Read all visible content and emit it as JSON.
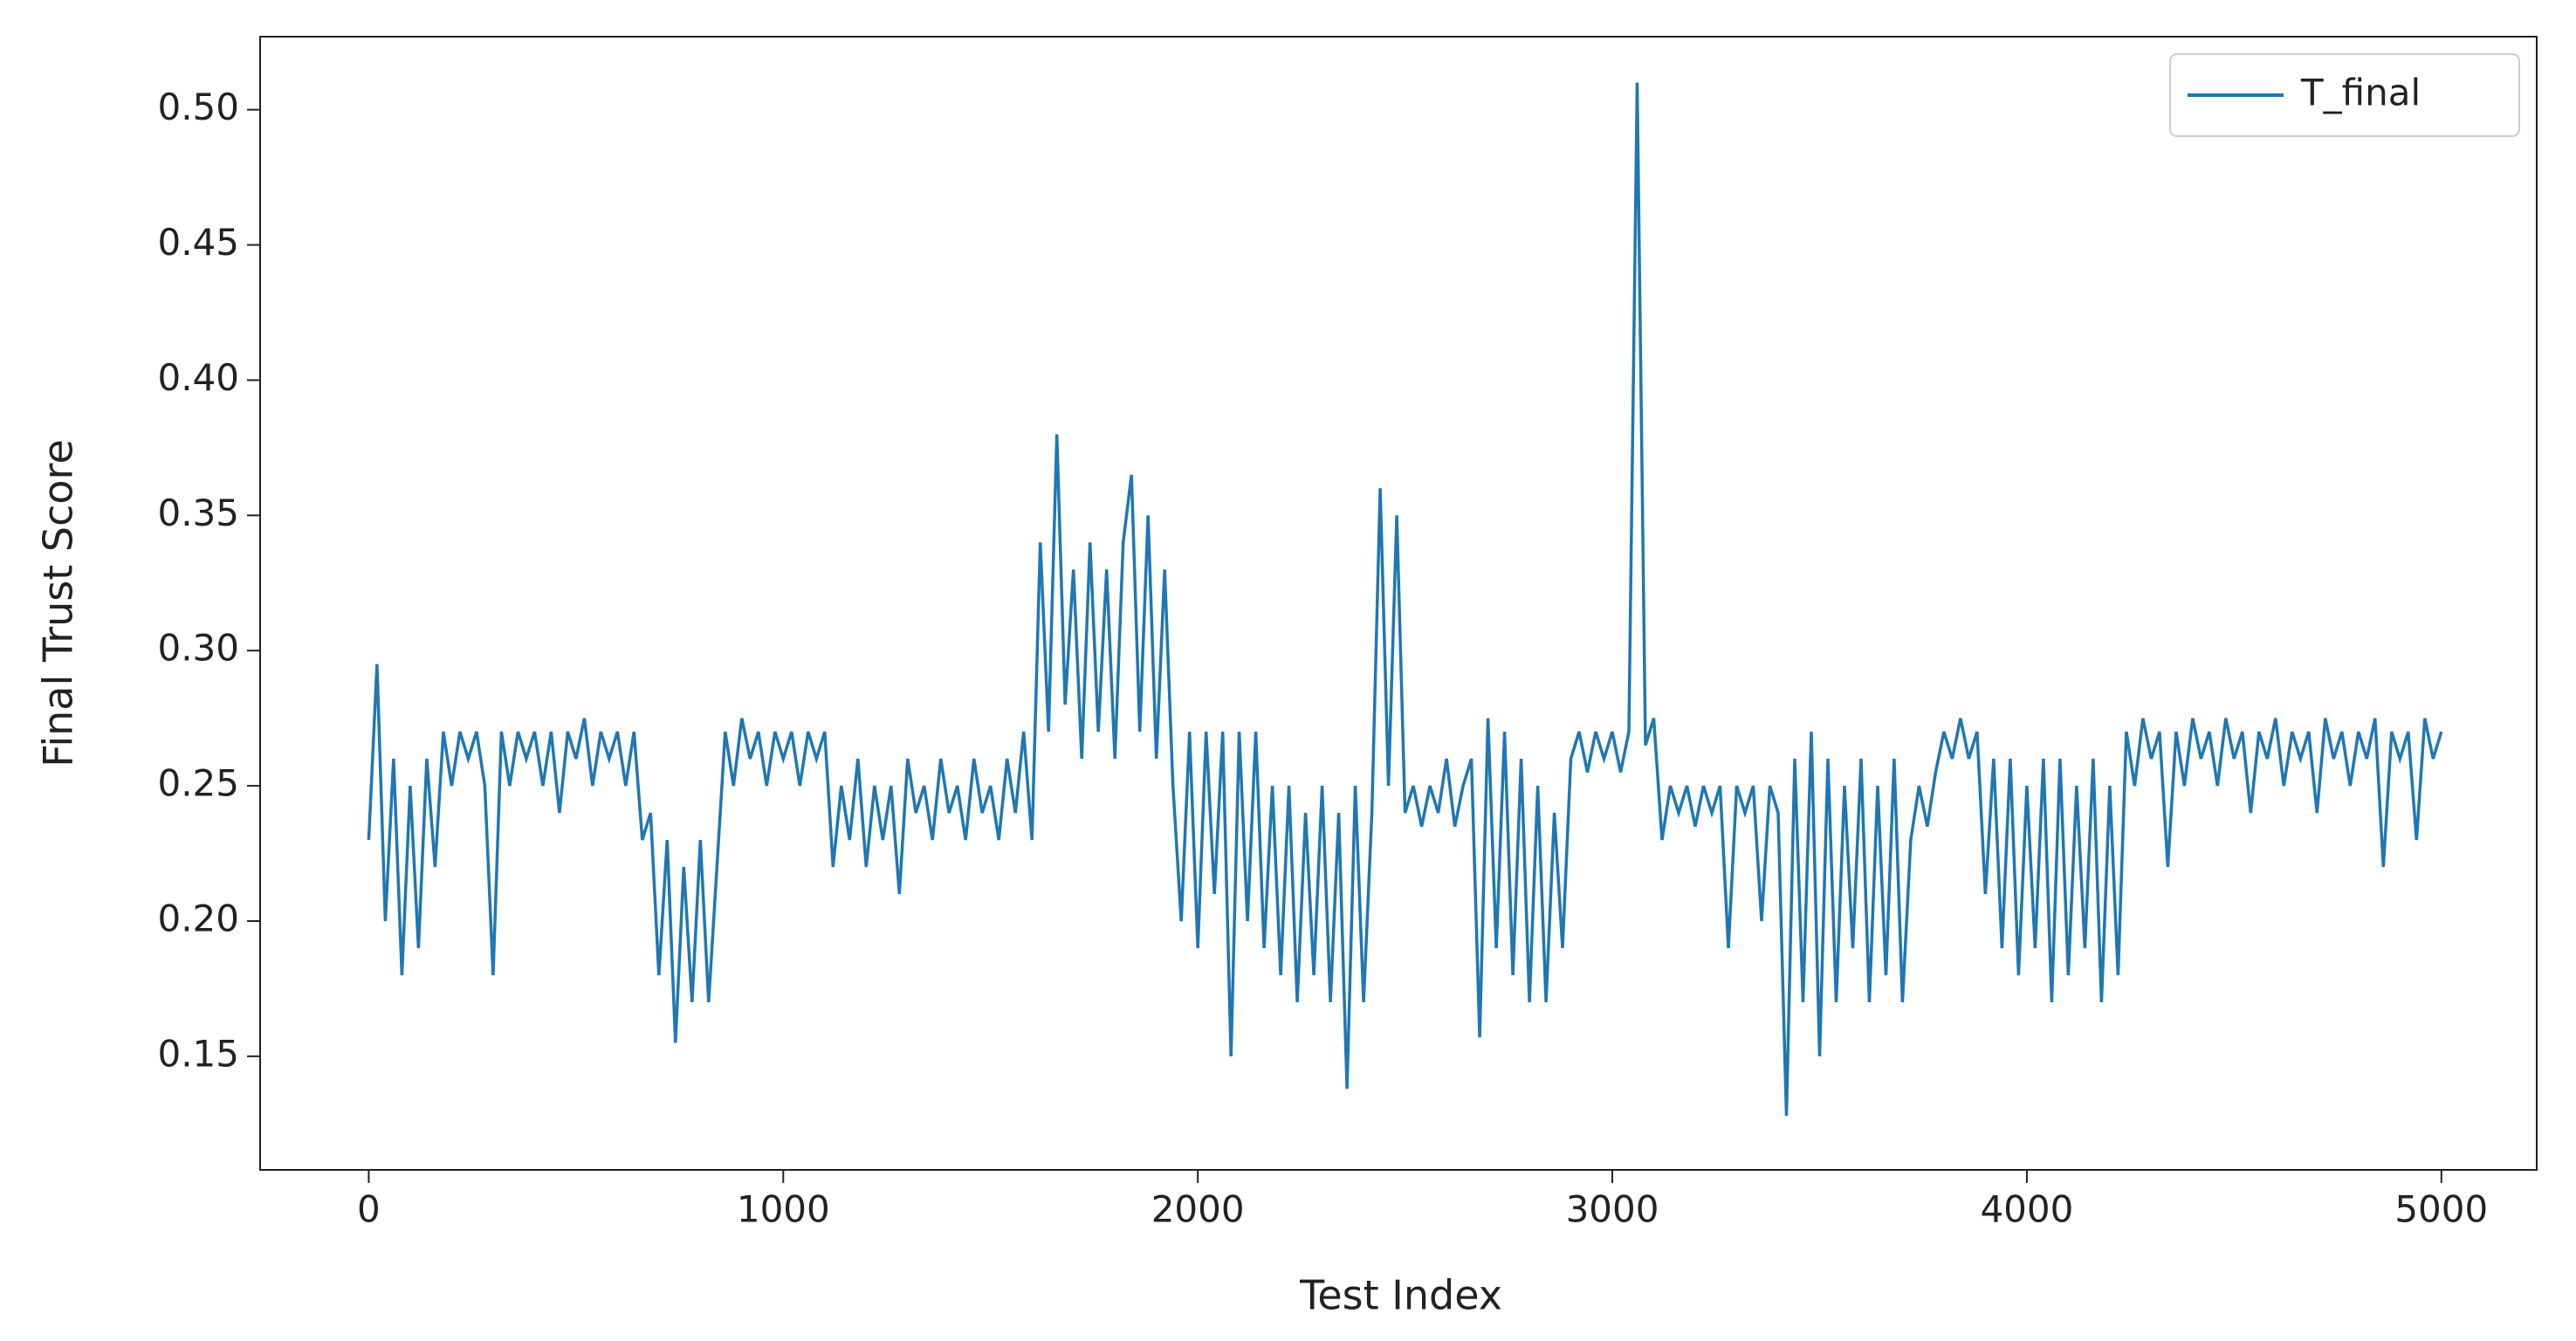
{
  "chart_data": {
    "type": "line",
    "xlabel": "Test Index",
    "ylabel": "Final Trust Score",
    "x": [
      0,
      20,
      40,
      60,
      80,
      100,
      120,
      140,
      160,
      180,
      200,
      220,
      240,
      260,
      280,
      300,
      320,
      340,
      360,
      380,
      400,
      420,
      440,
      460,
      480,
      500,
      520,
      540,
      560,
      580,
      600,
      620,
      640,
      660,
      680,
      700,
      720,
      740,
      760,
      780,
      800,
      820,
      840,
      860,
      880,
      900,
      920,
      940,
      960,
      980,
      1000,
      1020,
      1040,
      1060,
      1080,
      1100,
      1120,
      1140,
      1160,
      1180,
      1200,
      1220,
      1240,
      1260,
      1280,
      1300,
      1320,
      1340,
      1360,
      1380,
      1400,
      1420,
      1440,
      1460,
      1480,
      1500,
      1520,
      1540,
      1560,
      1580,
      1600,
      1620,
      1640,
      1660,
      1680,
      1700,
      1720,
      1740,
      1760,
      1780,
      1800,
      1820,
      1840,
      1860,
      1880,
      1900,
      1920,
      1940,
      1960,
      1980,
      2000,
      2020,
      2040,
      2060,
      2080,
      2100,
      2120,
      2140,
      2160,
      2180,
      2200,
      2220,
      2240,
      2260,
      2280,
      2300,
      2320,
      2340,
      2360,
      2380,
      2400,
      2420,
      2440,
      2460,
      2480,
      2500,
      2520,
      2540,
      2560,
      2580,
      2600,
      2620,
      2640,
      2660,
      2680,
      2700,
      2720,
      2740,
      2760,
      2780,
      2800,
      2820,
      2840,
      2860,
      2880,
      2900,
      2920,
      2940,
      2960,
      2980,
      3000,
      3020,
      3040,
      3060,
      3080,
      3100,
      3120,
      3140,
      3160,
      3180,
      3200,
      3220,
      3240,
      3260,
      3280,
      3300,
      3320,
      3340,
      3360,
      3380,
      3400,
      3420,
      3440,
      3460,
      3480,
      3500,
      3520,
      3540,
      3560,
      3580,
      3600,
      3620,
      3640,
      3660,
      3680,
      3700,
      3720,
      3740,
      3760,
      3780,
      3800,
      3820,
      3840,
      3860,
      3880,
      3900,
      3920,
      3940,
      3960,
      3980,
      4000,
      4020,
      4040,
      4060,
      4080,
      4100,
      4120,
      4140,
      4160,
      4180,
      4200,
      4220,
      4240,
      4260,
      4280,
      4300,
      4320,
      4340,
      4360,
      4380,
      4400,
      4420,
      4440,
      4460,
      4480,
      4500,
      4520,
      4540,
      4560,
      4580,
      4600,
      4620,
      4640,
      4660,
      4680,
      4700,
      4720,
      4740,
      4760,
      4780,
      4800,
      4820,
      4840,
      4860,
      4880,
      4900,
      4920,
      4940,
      4960,
      4980,
      5000
    ],
    "series": [
      {
        "name": "T_final",
        "color": "#1f77b4",
        "values": [
          0.23,
          0.295,
          0.2,
          0.26,
          0.18,
          0.25,
          0.19,
          0.26,
          0.22,
          0.27,
          0.25,
          0.27,
          0.26,
          0.27,
          0.25,
          0.18,
          0.27,
          0.25,
          0.27,
          0.26,
          0.27,
          0.25,
          0.27,
          0.24,
          0.27,
          0.26,
          0.275,
          0.25,
          0.27,
          0.26,
          0.27,
          0.25,
          0.27,
          0.23,
          0.24,
          0.18,
          0.23,
          0.155,
          0.22,
          0.17,
          0.23,
          0.17,
          0.22,
          0.27,
          0.25,
          0.275,
          0.26,
          0.27,
          0.25,
          0.27,
          0.26,
          0.27,
          0.25,
          0.27,
          0.26,
          0.27,
          0.22,
          0.25,
          0.23,
          0.26,
          0.22,
          0.25,
          0.23,
          0.25,
          0.21,
          0.26,
          0.24,
          0.25,
          0.23,
          0.26,
          0.24,
          0.25,
          0.23,
          0.26,
          0.24,
          0.25,
          0.23,
          0.26,
          0.24,
          0.27,
          0.23,
          0.34,
          0.27,
          0.38,
          0.28,
          0.33,
          0.26,
          0.34,
          0.27,
          0.33,
          0.26,
          0.34,
          0.365,
          0.27,
          0.35,
          0.26,
          0.33,
          0.25,
          0.2,
          0.27,
          0.19,
          0.27,
          0.21,
          0.27,
          0.15,
          0.27,
          0.2,
          0.27,
          0.19,
          0.25,
          0.18,
          0.25,
          0.17,
          0.24,
          0.18,
          0.25,
          0.17,
          0.24,
          0.138,
          0.25,
          0.17,
          0.24,
          0.36,
          0.25,
          0.35,
          0.24,
          0.25,
          0.235,
          0.25,
          0.24,
          0.26,
          0.235,
          0.25,
          0.26,
          0.157,
          0.275,
          0.19,
          0.27,
          0.18,
          0.26,
          0.17,
          0.25,
          0.17,
          0.24,
          0.19,
          0.26,
          0.27,
          0.255,
          0.27,
          0.26,
          0.27,
          0.255,
          0.27,
          0.51,
          0.265,
          0.275,
          0.23,
          0.25,
          0.24,
          0.25,
          0.235,
          0.25,
          0.24,
          0.25,
          0.19,
          0.25,
          0.24,
          0.25,
          0.2,
          0.25,
          0.24,
          0.128,
          0.26,
          0.17,
          0.27,
          0.15,
          0.26,
          0.17,
          0.25,
          0.19,
          0.26,
          0.17,
          0.25,
          0.18,
          0.26,
          0.17,
          0.23,
          0.25,
          0.235,
          0.255,
          0.27,
          0.26,
          0.275,
          0.26,
          0.27,
          0.21,
          0.26,
          0.19,
          0.26,
          0.18,
          0.25,
          0.19,
          0.26,
          0.17,
          0.26,
          0.18,
          0.25,
          0.19,
          0.26,
          0.17,
          0.25,
          0.18,
          0.27,
          0.25,
          0.275,
          0.26,
          0.27,
          0.22,
          0.27,
          0.25,
          0.275,
          0.26,
          0.27,
          0.25,
          0.275,
          0.26,
          0.27,
          0.24,
          0.27,
          0.26,
          0.275,
          0.25,
          0.27,
          0.26,
          0.27,
          0.24,
          0.275,
          0.26,
          0.27,
          0.25,
          0.27,
          0.26,
          0.275,
          0.22,
          0.27,
          0.26,
          0.27,
          0.23,
          0.275,
          0.26,
          0.27
        ]
      }
    ],
    "xlim": [
      -262,
      5230
    ],
    "ylim": [
      0.108,
      0.527
    ],
    "xticks": [
      0,
      1000,
      2000,
      3000,
      4000,
      5000
    ],
    "yticks": [
      0.15,
      {
        "value": 0.2,
        "label": "0.20"
      },
      0.25,
      {
        "value": 0.3,
        "label": "0.30"
      },
      0.35,
      {
        "value": 0.4,
        "label": "0.40"
      },
      0.45,
      {
        "value": 0.5,
        "label": "0.50"
      }
    ],
    "legend": "upper right"
  }
}
